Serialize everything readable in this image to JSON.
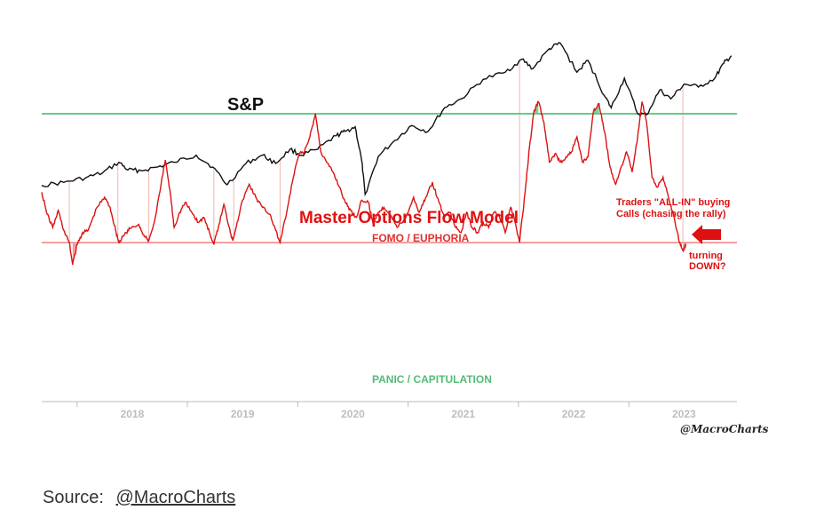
{
  "chart_data": {
    "type": "line",
    "x_axis": {
      "ticks": [
        "2018",
        "2019",
        "2020",
        "2021",
        "2022",
        "2023"
      ],
      "range": [
        2017.3,
        2023.6
      ]
    },
    "series": [
      {
        "name": "S&P",
        "color": "#111111",
        "points": [
          [
            2017.3,
            2390
          ],
          [
            2017.5,
            2440
          ],
          [
            2017.7,
            2520
          ],
          [
            2017.85,
            2600
          ],
          [
            2018.0,
            2780
          ],
          [
            2018.08,
            2650
          ],
          [
            2018.2,
            2640
          ],
          [
            2018.35,
            2700
          ],
          [
            2018.5,
            2780
          ],
          [
            2018.7,
            2900
          ],
          [
            2018.85,
            2700
          ],
          [
            2018.98,
            2400
          ],
          [
            2019.15,
            2760
          ],
          [
            2019.3,
            2900
          ],
          [
            2019.42,
            2760
          ],
          [
            2019.55,
            3000
          ],
          [
            2019.65,
            2900
          ],
          [
            2019.8,
            3000
          ],
          [
            2019.97,
            3230
          ],
          [
            2020.05,
            3300
          ],
          [
            2020.14,
            3380
          ],
          [
            2020.2,
            2800
          ],
          [
            2020.23,
            2240
          ],
          [
            2020.35,
            2880
          ],
          [
            2020.5,
            3150
          ],
          [
            2020.65,
            3400
          ],
          [
            2020.8,
            3300
          ],
          [
            2020.95,
            3700
          ],
          [
            2021.1,
            3850
          ],
          [
            2021.3,
            4180
          ],
          [
            2021.5,
            4300
          ],
          [
            2021.65,
            4520
          ],
          [
            2021.75,
            4360
          ],
          [
            2021.9,
            4700
          ],
          [
            2022.0,
            4790
          ],
          [
            2022.15,
            4300
          ],
          [
            2022.25,
            4500
          ],
          [
            2022.4,
            3900
          ],
          [
            2022.46,
            3700
          ],
          [
            2022.58,
            4200
          ],
          [
            2022.7,
            3600
          ],
          [
            2022.78,
            3580
          ],
          [
            2022.9,
            4000
          ],
          [
            2023.0,
            3850
          ],
          [
            2023.12,
            4100
          ],
          [
            2023.25,
            4050
          ],
          [
            2023.4,
            4200
          ],
          [
            2023.48,
            4450
          ],
          [
            2023.55,
            4580
          ]
        ]
      },
      {
        "name": "Master Options Flow Model",
        "color": "#dd1111",
        "points": [
          [
            2017.3,
            20
          ],
          [
            2017.35,
            42
          ],
          [
            2017.4,
            55
          ],
          [
            2017.45,
            38
          ],
          [
            2017.5,
            58
          ],
          [
            2017.55,
            70
          ],
          [
            2017.58,
            92
          ],
          [
            2017.62,
            72
          ],
          [
            2017.67,
            60
          ],
          [
            2017.72,
            58
          ],
          [
            2017.8,
            35
          ],
          [
            2017.87,
            25
          ],
          [
            2017.92,
            35
          ],
          [
            2017.97,
            58
          ],
          [
            2018.0,
            70
          ],
          [
            2018.05,
            62
          ],
          [
            2018.1,
            56
          ],
          [
            2018.18,
            52
          ],
          [
            2018.23,
            64
          ],
          [
            2018.27,
            68
          ],
          [
            2018.32,
            50
          ],
          [
            2018.37,
            20
          ],
          [
            2018.42,
            -12
          ],
          [
            2018.47,
            25
          ],
          [
            2018.5,
            55
          ],
          [
            2018.55,
            40
          ],
          [
            2018.6,
            30
          ],
          [
            2018.66,
            40
          ],
          [
            2018.72,
            50
          ],
          [
            2018.77,
            45
          ],
          [
            2018.82,
            60
          ],
          [
            2018.86,
            72
          ],
          [
            2018.9,
            55
          ],
          [
            2018.95,
            32
          ],
          [
            2019.0,
            55
          ],
          [
            2019.03,
            68
          ],
          [
            2019.07,
            50
          ],
          [
            2019.12,
            28
          ],
          [
            2019.18,
            12
          ],
          [
            2019.24,
            25
          ],
          [
            2019.3,
            35
          ],
          [
            2019.37,
            42
          ],
          [
            2019.42,
            58
          ],
          [
            2019.46,
            70
          ],
          [
            2019.52,
            40
          ],
          [
            2019.58,
            5
          ],
          [
            2019.63,
            -18
          ],
          [
            2019.68,
            -20
          ],
          [
            2019.73,
            -35
          ],
          [
            2019.78,
            -58
          ],
          [
            2019.83,
            -20
          ],
          [
            2019.88,
            -10
          ],
          [
            2019.94,
            0
          ],
          [
            2020.0,
            15
          ],
          [
            2020.05,
            30
          ],
          [
            2020.1,
            38
          ],
          [
            2020.15,
            45
          ],
          [
            2020.2,
            28
          ],
          [
            2020.26,
            30
          ],
          [
            2020.3,
            50
          ],
          [
            2020.35,
            40
          ],
          [
            2020.4,
            35
          ],
          [
            2020.45,
            40
          ],
          [
            2020.52,
            55
          ],
          [
            2020.6,
            45
          ],
          [
            2020.67,
            25
          ],
          [
            2020.72,
            40
          ],
          [
            2020.78,
            25
          ],
          [
            2020.84,
            10
          ],
          [
            2020.9,
            30
          ],
          [
            2020.95,
            45
          ],
          [
            2021.0,
            40
          ],
          [
            2021.05,
            55
          ],
          [
            2021.1,
            60
          ],
          [
            2021.15,
            40
          ],
          [
            2021.2,
            55
          ],
          [
            2021.25,
            60
          ],
          [
            2021.3,
            50
          ],
          [
            2021.35,
            55
          ],
          [
            2021.4,
            40
          ],
          [
            2021.45,
            45
          ],
          [
            2021.5,
            60
          ],
          [
            2021.55,
            35
          ],
          [
            2021.58,
            45
          ],
          [
            2021.63,
            70
          ],
          [
            2021.68,
            20
          ],
          [
            2021.72,
            -25
          ],
          [
            2021.76,
            -60
          ],
          [
            2021.8,
            -70
          ],
          [
            2021.85,
            -50
          ],
          [
            2021.9,
            -10
          ],
          [
            2021.95,
            -18
          ],
          [
            2022.0,
            -10
          ],
          [
            2022.05,
            -15
          ],
          [
            2022.1,
            -20
          ],
          [
            2022.15,
            -35
          ],
          [
            2022.2,
            -10
          ],
          [
            2022.25,
            -15
          ],
          [
            2022.3,
            -60
          ],
          [
            2022.35,
            -68
          ],
          [
            2022.4,
            -40
          ],
          [
            2022.45,
            -5
          ],
          [
            2022.5,
            12
          ],
          [
            2022.55,
            -5
          ],
          [
            2022.6,
            -20
          ],
          [
            2022.65,
            0
          ],
          [
            2022.7,
            -35
          ],
          [
            2022.74,
            -70
          ],
          [
            2022.78,
            -50
          ],
          [
            2022.83,
            5
          ],
          [
            2022.88,
            15
          ],
          [
            2022.93,
            5
          ],
          [
            2022.98,
            25
          ],
          [
            2023.03,
            45
          ],
          [
            2023.08,
            70
          ],
          [
            2023.11,
            78
          ],
          [
            2023.14,
            72
          ]
        ]
      }
    ],
    "reference_lines": [
      {
        "label": "FOMO / EUPHORIA",
        "value": 70,
        "color": "#f2a0a0",
        "text_color": "#e03030"
      },
      {
        "label": "PANIC / CAPITULATION",
        "value": -58,
        "color": "#66cc88",
        "text_color": "#55bb77"
      }
    ],
    "title": "Master Options Flow Model",
    "sp_label": "S&P",
    "annotations": [
      {
        "text_lines": [
          "Traders \"ALL-IN\" buying",
          "Calls (chasing the rally)"
        ],
        "color": "#dd1111"
      },
      {
        "text_lines": [
          "turning",
          "DOWN?"
        ],
        "color": "#dd1111"
      }
    ],
    "watermark": "@MacroCharts",
    "vertical_marker_dates": [
      2017.55,
      2017.99,
      2018.27,
      2018.86,
      2019.04,
      2019.46,
      2021.63,
      2023.11
    ]
  },
  "footer": {
    "source_label": "Source:",
    "source_link": "@MacroCharts"
  }
}
